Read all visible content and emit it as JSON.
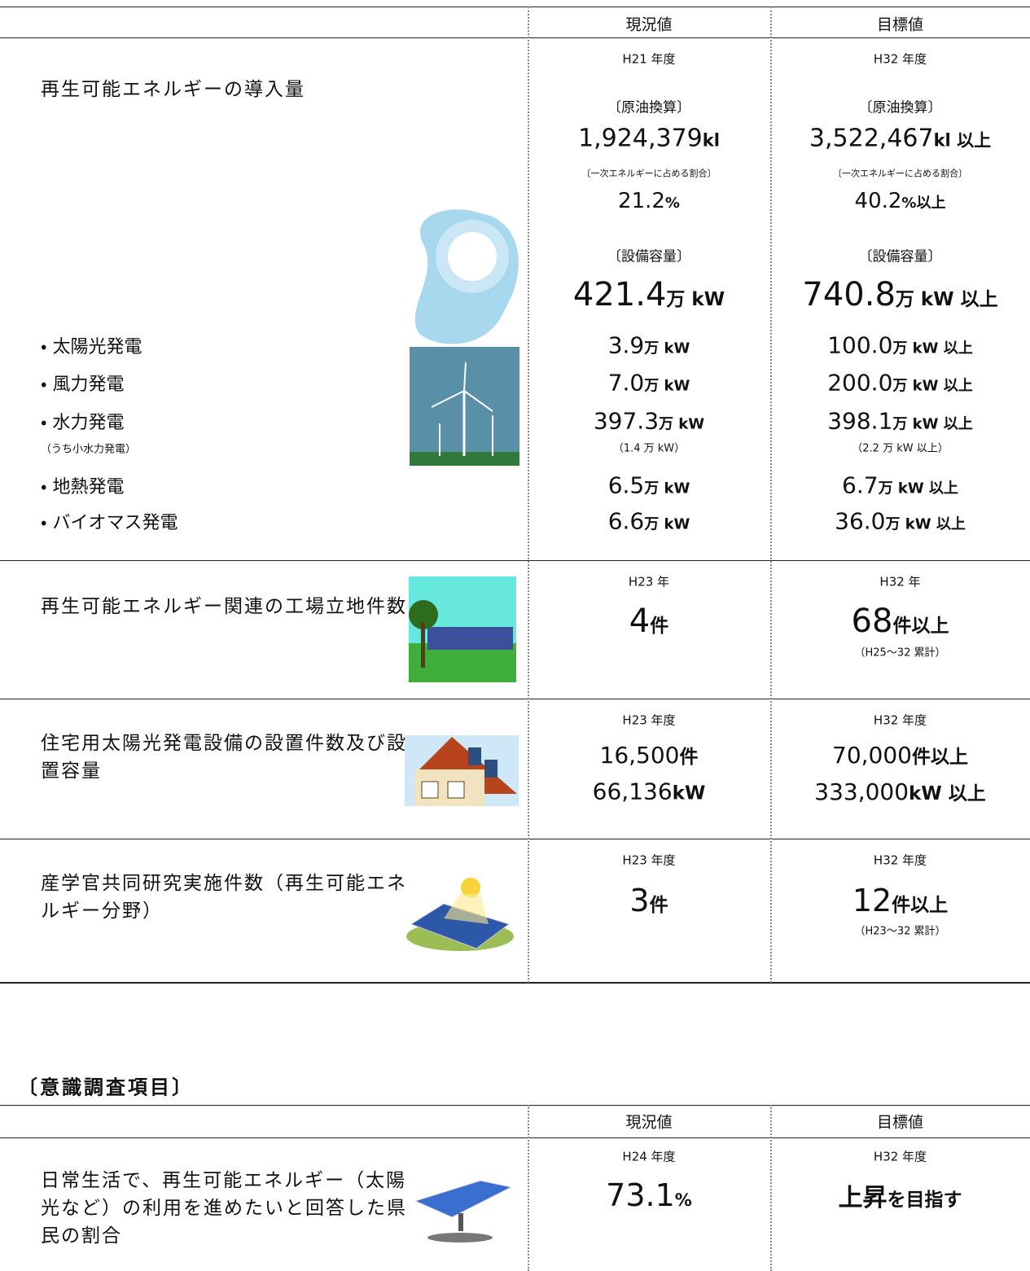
{
  "table1": {
    "header": {
      "current": "現況値",
      "target": "目標値"
    },
    "rows": [
      {
        "label": "再生可能エネルギーの導入量",
        "current": {
          "period": "H21 年度",
          "oil_label": "〔原油換算〕",
          "oil_value": "1,924,379",
          "oil_unit": "kl",
          "share_label": "〔一次エネルギーに占める割合〕",
          "share_value": "21.2",
          "share_unit": "%",
          "capacity_label": "〔設備容量〕",
          "capacity_value": "421.4",
          "capacity_unit": "万 kW"
        },
        "target": {
          "period": "H32 年度",
          "oil_label": "〔原油換算〕",
          "oil_value": "3,522,467",
          "oil_unit": "kl 以上",
          "share_label": "〔一次エネルギーに占める割合〕",
          "share_value": "40.2",
          "share_unit": "%以上",
          "capacity_label": "〔設備容量〕",
          "capacity_value": "740.8",
          "capacity_unit": "万 kW 以上"
        },
        "items": [
          {
            "label": "・ 太陽光発電",
            "current": {
              "value": "3.9",
              "unit": "万 kW"
            },
            "target": {
              "value": "100.0",
              "unit": "万 kW 以上"
            }
          },
          {
            "label": "・ 風力発電",
            "current": {
              "value": "7.0",
              "unit": "万 kW"
            },
            "target": {
              "value": "200.0",
              "unit": "万 kW 以上"
            }
          },
          {
            "label": "・ 水力発電",
            "sub_label": "（うち小水力発電）",
            "current": {
              "value": "397.3",
              "unit": "万 kW",
              "sub": "（1.4 万 kW）"
            },
            "target": {
              "value": "398.1",
              "unit": "万 kW 以上",
              "sub": "（2.2 万 kW 以上）"
            }
          },
          {
            "label": "・ 地熱発電",
            "current": {
              "value": "6.5",
              "unit": "万 kW"
            },
            "target": {
              "value": "6.7",
              "unit": "万 kW 以上"
            }
          },
          {
            "label": "・ バイオマス発電",
            "current": {
              "value": "6.6",
              "unit": "万 kW"
            },
            "target": {
              "value": "36.0",
              "unit": "万 kW 以上"
            }
          }
        ]
      },
      {
        "label": "再生可能エネルギー関連の工場立地件数",
        "current": {
          "period": "H23 年",
          "value": "4",
          "unit": "件"
        },
        "target": {
          "period": "H32 年",
          "value": "68",
          "unit": "件以上",
          "note": "（H25～32 累計）"
        }
      },
      {
        "label": "住宅用太陽光発電設備の設置件数及び設置容量",
        "current": {
          "period": "H23 年度",
          "lines": [
            {
              "value": "16,500",
              "unit": "件"
            },
            {
              "value": "66,136",
              "unit": "kW"
            }
          ]
        },
        "target": {
          "period": "H32 年度",
          "lines": [
            {
              "value": "70,000",
              "unit": "件以上"
            },
            {
              "value": "333,000",
              "unit": "kW 以上"
            }
          ]
        }
      },
      {
        "label": "産学官共同研究実施件数（再生可能エネルギー分野）",
        "current": {
          "period": "H23 年度",
          "value": "3",
          "unit": "件"
        },
        "target": {
          "period": "H32 年度",
          "value": "12",
          "unit": "件以上",
          "note": "（H23～32 累計）"
        }
      }
    ]
  },
  "section_title": "〔意識調査項目〕",
  "table2": {
    "header": {
      "current": "現況値",
      "target": "目標値"
    },
    "rows": [
      {
        "label": "日常生活で、再生可能エネルギー（太陽光など）の利用を進めたいと回答した県民の割合",
        "current": {
          "period": "H24 年度",
          "value": "73.1",
          "unit": "%"
        },
        "target": {
          "period": "H32 年度",
          "value": "上昇",
          "unit": "を目指す"
        }
      }
    ]
  }
}
